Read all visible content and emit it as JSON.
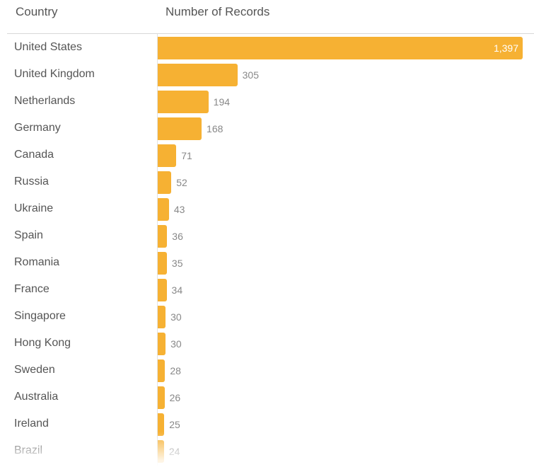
{
  "header": {
    "country_label": "Country",
    "records_label": "Number of Records"
  },
  "colors": {
    "bar": "#F6B133",
    "text": "#555555",
    "value": "#888888"
  },
  "chart_data": {
    "type": "bar",
    "orientation": "horizontal",
    "xlabel": "Number of Records",
    "ylabel": "Country",
    "categories": [
      "United States",
      "United Kingdom",
      "Netherlands",
      "Germany",
      "Canada",
      "Russia",
      "Ukraine",
      "Spain",
      "Romania",
      "France",
      "Singapore",
      "Hong Kong",
      "Sweden",
      "Australia",
      "Ireland",
      "Brazil"
    ],
    "values": [
      1397,
      305,
      194,
      168,
      71,
      52,
      43,
      36,
      35,
      34,
      30,
      30,
      28,
      26,
      25,
      24
    ],
    "value_labels": [
      "1,397",
      "305",
      "194",
      "168",
      "71",
      "52",
      "43",
      "36",
      "35",
      "34",
      "30",
      "30",
      "28",
      "26",
      "25",
      "24"
    ],
    "xlim": [
      0,
      1397
    ],
    "grid": false,
    "data_labels": true
  }
}
